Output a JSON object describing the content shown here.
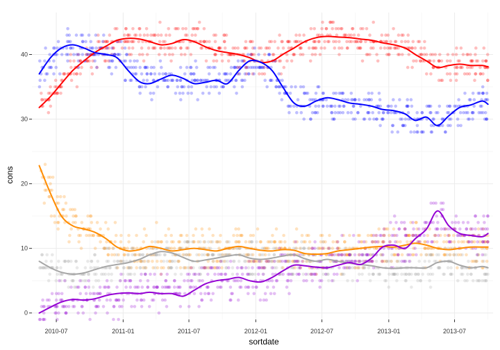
{
  "chart_data": {
    "type": "scatter",
    "title": "",
    "xlabel": "sortdate",
    "ylabel": "cons",
    "xlim": [
      "2010-04-25",
      "2013-10-15"
    ],
    "ylim": [
      -1,
      46.5
    ],
    "x_ticks": [
      "2010-07",
      "2011-01",
      "2011-07",
      "2012-01",
      "2012-07",
      "2013-01",
      "2013-07"
    ],
    "y_ticks": [
      0,
      10,
      20,
      30,
      40
    ],
    "grid": true,
    "legend": "none",
    "point_alpha": 0.25,
    "series": [
      {
        "color": "#ff0000",
        "smooth": [
          [
            "2010-05-15",
            31.8
          ],
          [
            "2010-06-15",
            33.5
          ],
          [
            "2010-07-15",
            35.5
          ],
          [
            "2010-08-15",
            37.5
          ],
          [
            "2010-09-15",
            39.0
          ],
          [
            "2010-10-15",
            40.3
          ],
          [
            "2010-11-15",
            41.3
          ],
          [
            "2010-12-15",
            42.2
          ],
          [
            "2011-01-15",
            42.5
          ],
          [
            "2011-02-15",
            42.4
          ],
          [
            "2011-03-15",
            42.0
          ],
          [
            "2011-04-15",
            41.5
          ],
          [
            "2011-05-15",
            41.7
          ],
          [
            "2011-06-15",
            42.3
          ],
          [
            "2011-07-15",
            42.0
          ],
          [
            "2011-08-15",
            41.2
          ],
          [
            "2011-09-15",
            40.6
          ],
          [
            "2011-10-15",
            40.3
          ],
          [
            "2011-11-15",
            40.0
          ],
          [
            "2011-12-15",
            39.5
          ],
          [
            "2012-01-15",
            38.8
          ],
          [
            "2012-02-15",
            39.0
          ],
          [
            "2012-03-15",
            40.0
          ],
          [
            "2012-04-15",
            41.0
          ],
          [
            "2012-05-15",
            42.0
          ],
          [
            "2012-06-15",
            42.6
          ],
          [
            "2012-07-15",
            42.8
          ],
          [
            "2012-08-15",
            42.7
          ],
          [
            "2012-09-15",
            42.6
          ],
          [
            "2012-10-15",
            42.4
          ],
          [
            "2012-11-15",
            42.2
          ],
          [
            "2012-12-15",
            41.8
          ],
          [
            "2013-01-15",
            41.5
          ],
          [
            "2013-02-15",
            41.0
          ],
          [
            "2013-03-15",
            40.0
          ],
          [
            "2013-04-15",
            39.0
          ],
          [
            "2013-05-15",
            38.0
          ],
          [
            "2013-06-15",
            38.3
          ],
          [
            "2013-07-15",
            38.5
          ],
          [
            "2013-08-15",
            38.3
          ],
          [
            "2013-09-15",
            38.3
          ],
          [
            "2013-10-01",
            38.1
          ]
        ],
        "point_base": [
          [
            0,
            32
          ],
          [
            2,
            36
          ],
          [
            4,
            38.5
          ],
          [
            6,
            41
          ],
          [
            8,
            42
          ],
          [
            15,
            42
          ],
          [
            20,
            40
          ],
          [
            24,
            41
          ],
          [
            26,
            43
          ],
          [
            30,
            42
          ],
          [
            36,
            39
          ],
          [
            41,
            38.5
          ]
        ],
        "spread": 2.0
      },
      {
        "color": "#0000ff",
        "smooth": [
          [
            "2010-05-15",
            37.0
          ],
          [
            "2010-06-15",
            39.5
          ],
          [
            "2010-07-15",
            41.0
          ],
          [
            "2010-08-15",
            41.5
          ],
          [
            "2010-09-15",
            41.0
          ],
          [
            "2010-10-15",
            40.3
          ],
          [
            "2010-11-15",
            40.0
          ],
          [
            "2010-12-15",
            39.5
          ],
          [
            "2011-01-15",
            37.5
          ],
          [
            "2011-02-15",
            35.8
          ],
          [
            "2011-03-15",
            35.5
          ],
          [
            "2011-04-15",
            36.2
          ],
          [
            "2011-05-15",
            36.8
          ],
          [
            "2011-06-15",
            36.3
          ],
          [
            "2011-07-15",
            35.5
          ],
          [
            "2011-08-15",
            35.7
          ],
          [
            "2011-09-15",
            36.0
          ],
          [
            "2011-10-15",
            35.5
          ],
          [
            "2011-11-15",
            37.5
          ],
          [
            "2011-12-15",
            39.0
          ],
          [
            "2012-01-15",
            38.8
          ],
          [
            "2012-02-15",
            37.5
          ],
          [
            "2012-03-15",
            35.0
          ],
          [
            "2012-04-15",
            32.5
          ],
          [
            "2012-05-15",
            32.0
          ],
          [
            "2012-06-15",
            32.8
          ],
          [
            "2012-07-15",
            33.3
          ],
          [
            "2012-08-15",
            33.0
          ],
          [
            "2012-09-15",
            32.5
          ],
          [
            "2012-10-15",
            32.3
          ],
          [
            "2012-11-15",
            32.0
          ],
          [
            "2012-12-15",
            31.5
          ],
          [
            "2013-01-15",
            31.3
          ],
          [
            "2013-02-15",
            30.8
          ],
          [
            "2013-03-15",
            29.8
          ],
          [
            "2013-04-15",
            30.3
          ],
          [
            "2013-05-15",
            29.0
          ],
          [
            "2013-06-15",
            30.5
          ],
          [
            "2013-07-15",
            31.8
          ],
          [
            "2013-08-15",
            32.2
          ],
          [
            "2013-09-15",
            32.8
          ],
          [
            "2013-10-01",
            32.3
          ]
        ],
        "point_base": [
          [
            0,
            37
          ],
          [
            3,
            41.5
          ],
          [
            8,
            39.5
          ],
          [
            10,
            35.5
          ],
          [
            18,
            36
          ],
          [
            20,
            38.5
          ],
          [
            23,
            32
          ],
          [
            30,
            31.5
          ],
          [
            36,
            29.5
          ],
          [
            41,
            32.5
          ]
        ],
        "spread": 2.0
      },
      {
        "color": "#ff8c00",
        "smooth": [
          [
            "2010-05-15",
            22.8
          ],
          [
            "2010-06-15",
            18.5
          ],
          [
            "2010-07-15",
            15.0
          ],
          [
            "2010-08-15",
            13.5
          ],
          [
            "2010-09-15",
            13.0
          ],
          [
            "2010-10-15",
            12.5
          ],
          [
            "2010-11-15",
            11.5
          ],
          [
            "2010-12-15",
            10.2
          ],
          [
            "2011-01-15",
            9.6
          ],
          [
            "2011-02-15",
            9.8
          ],
          [
            "2011-03-15",
            10.3
          ],
          [
            "2011-04-15",
            10.0
          ],
          [
            "2011-05-15",
            9.6
          ],
          [
            "2011-06-15",
            9.8
          ],
          [
            "2011-07-15",
            10.0
          ],
          [
            "2011-08-15",
            9.8
          ],
          [
            "2011-09-15",
            9.6
          ],
          [
            "2011-10-15",
            10.0
          ],
          [
            "2011-11-15",
            10.3
          ],
          [
            "2011-12-15",
            10.0
          ],
          [
            "2012-01-15",
            9.7
          ],
          [
            "2012-02-15",
            9.6
          ],
          [
            "2012-03-15",
            9.8
          ],
          [
            "2012-04-15",
            9.7
          ],
          [
            "2012-05-15",
            9.2
          ],
          [
            "2012-06-15",
            9.1
          ],
          [
            "2012-07-15",
            9.2
          ],
          [
            "2012-08-15",
            9.6
          ],
          [
            "2012-09-15",
            9.8
          ],
          [
            "2012-10-15",
            10.0
          ],
          [
            "2012-11-15",
            10.2
          ],
          [
            "2012-12-15",
            10.3
          ],
          [
            "2013-01-15",
            10.2
          ],
          [
            "2013-02-15",
            10.5
          ],
          [
            "2013-03-15",
            10.8
          ],
          [
            "2013-04-15",
            10.5
          ],
          [
            "2013-05-15",
            10.0
          ],
          [
            "2013-06-15",
            9.8
          ],
          [
            "2013-07-15",
            10.0
          ],
          [
            "2013-08-15",
            10.2
          ],
          [
            "2013-09-15",
            10.2
          ],
          [
            "2013-10-01",
            10.2
          ]
        ],
        "point_base": [
          [
            0,
            21
          ],
          [
            2,
            15
          ],
          [
            4,
            13
          ],
          [
            6,
            11
          ],
          [
            8,
            9.5
          ],
          [
            20,
            10
          ],
          [
            28,
            9.5
          ],
          [
            36,
            11
          ],
          [
            41,
            10
          ]
        ],
        "spread": 2.5
      },
      {
        "color": "#a6a6a6",
        "smooth": [
          [
            "2010-05-15",
            8.0
          ],
          [
            "2010-06-15",
            7.0
          ],
          [
            "2010-07-15",
            6.3
          ],
          [
            "2010-08-15",
            6.0
          ],
          [
            "2010-09-15",
            6.2
          ],
          [
            "2010-10-15",
            6.7
          ],
          [
            "2010-11-15",
            7.2
          ],
          [
            "2010-12-15",
            7.5
          ],
          [
            "2011-01-15",
            7.8
          ],
          [
            "2011-02-15",
            8.3
          ],
          [
            "2011-03-15",
            9.0
          ],
          [
            "2011-04-15",
            9.5
          ],
          [
            "2011-05-15",
            9.3
          ],
          [
            "2011-06-15",
            8.6
          ],
          [
            "2011-07-15",
            8.0
          ],
          [
            "2011-08-15",
            8.2
          ],
          [
            "2011-09-15",
            8.5
          ],
          [
            "2011-10-15",
            8.8
          ],
          [
            "2011-11-15",
            9.0
          ],
          [
            "2011-12-15",
            8.5
          ],
          [
            "2012-01-15",
            8.3
          ],
          [
            "2012-02-15",
            8.5
          ],
          [
            "2012-03-15",
            8.8
          ],
          [
            "2012-04-15",
            9.0
          ],
          [
            "2012-05-15",
            8.4
          ],
          [
            "2012-06-15",
            8.0
          ],
          [
            "2012-07-15",
            8.3
          ],
          [
            "2012-08-15",
            8.0
          ],
          [
            "2012-09-15",
            7.7
          ],
          [
            "2012-10-15",
            7.5
          ],
          [
            "2012-11-15",
            7.3
          ],
          [
            "2012-12-15",
            7.0
          ],
          [
            "2013-01-15",
            6.9
          ],
          [
            "2013-02-15",
            7.0
          ],
          [
            "2013-03-15",
            7.0
          ],
          [
            "2013-04-15",
            7.0
          ],
          [
            "2013-05-15",
            7.8
          ],
          [
            "2013-06-15",
            8.0
          ],
          [
            "2013-07-15",
            7.4
          ],
          [
            "2013-08-15",
            7.0
          ],
          [
            "2013-09-15",
            7.2
          ],
          [
            "2013-10-01",
            7.0
          ]
        ],
        "point_base": [
          [
            0,
            8
          ],
          [
            3,
            6
          ],
          [
            10,
            8.5
          ],
          [
            20,
            8.5
          ],
          [
            30,
            7
          ],
          [
            41,
            7
          ]
        ],
        "spread": 2.0
      },
      {
        "color": "#9400d3",
        "smooth": [
          [
            "2010-05-15",
            0.0
          ],
          [
            "2010-06-15",
            0.9
          ],
          [
            "2010-07-15",
            1.7
          ],
          [
            "2010-08-15",
            2.1
          ],
          [
            "2010-09-15",
            2.0
          ],
          [
            "2010-10-15",
            2.2
          ],
          [
            "2010-11-15",
            2.7
          ],
          [
            "2010-12-15",
            3.0
          ],
          [
            "2011-01-15",
            3.1
          ],
          [
            "2011-02-15",
            3.0
          ],
          [
            "2011-03-15",
            3.2
          ],
          [
            "2011-04-15",
            3.0
          ],
          [
            "2011-05-15",
            3.0
          ],
          [
            "2011-06-15",
            2.6
          ],
          [
            "2011-07-15",
            3.5
          ],
          [
            "2011-08-15",
            4.5
          ],
          [
            "2011-09-15",
            5.0
          ],
          [
            "2011-10-15",
            5.2
          ],
          [
            "2011-11-15",
            5.5
          ],
          [
            "2011-12-15",
            5.0
          ],
          [
            "2012-01-15",
            4.8
          ],
          [
            "2012-02-15",
            5.5
          ],
          [
            "2012-03-15",
            6.5
          ],
          [
            "2012-04-15",
            7.4
          ],
          [
            "2012-05-15",
            7.3
          ],
          [
            "2012-06-15",
            7.1
          ],
          [
            "2012-07-15",
            7.0
          ],
          [
            "2012-08-15",
            7.4
          ],
          [
            "2012-09-15",
            7.8
          ],
          [
            "2012-10-15",
            7.5
          ],
          [
            "2012-11-15",
            8.5
          ],
          [
            "2012-12-15",
            10.2
          ],
          [
            "2013-01-15",
            10.5
          ],
          [
            "2013-02-15",
            10.0
          ],
          [
            "2013-03-15",
            11.5
          ],
          [
            "2013-04-15",
            13.0
          ],
          [
            "2013-05-15",
            15.8
          ],
          [
            "2013-06-15",
            13.5
          ],
          [
            "2013-07-15",
            12.3
          ],
          [
            "2013-08-15",
            12.0
          ],
          [
            "2013-09-15",
            11.8
          ],
          [
            "2013-10-01",
            12.3
          ]
        ],
        "point_base": [
          [
            0,
            0.5
          ],
          [
            3,
            2
          ],
          [
            8,
            3
          ],
          [
            14,
            4
          ],
          [
            20,
            5
          ],
          [
            23,
            7.5
          ],
          [
            30,
            9.5
          ],
          [
            36,
            14
          ],
          [
            41,
            12
          ]
        ],
        "spread": 2.5
      }
    ]
  }
}
